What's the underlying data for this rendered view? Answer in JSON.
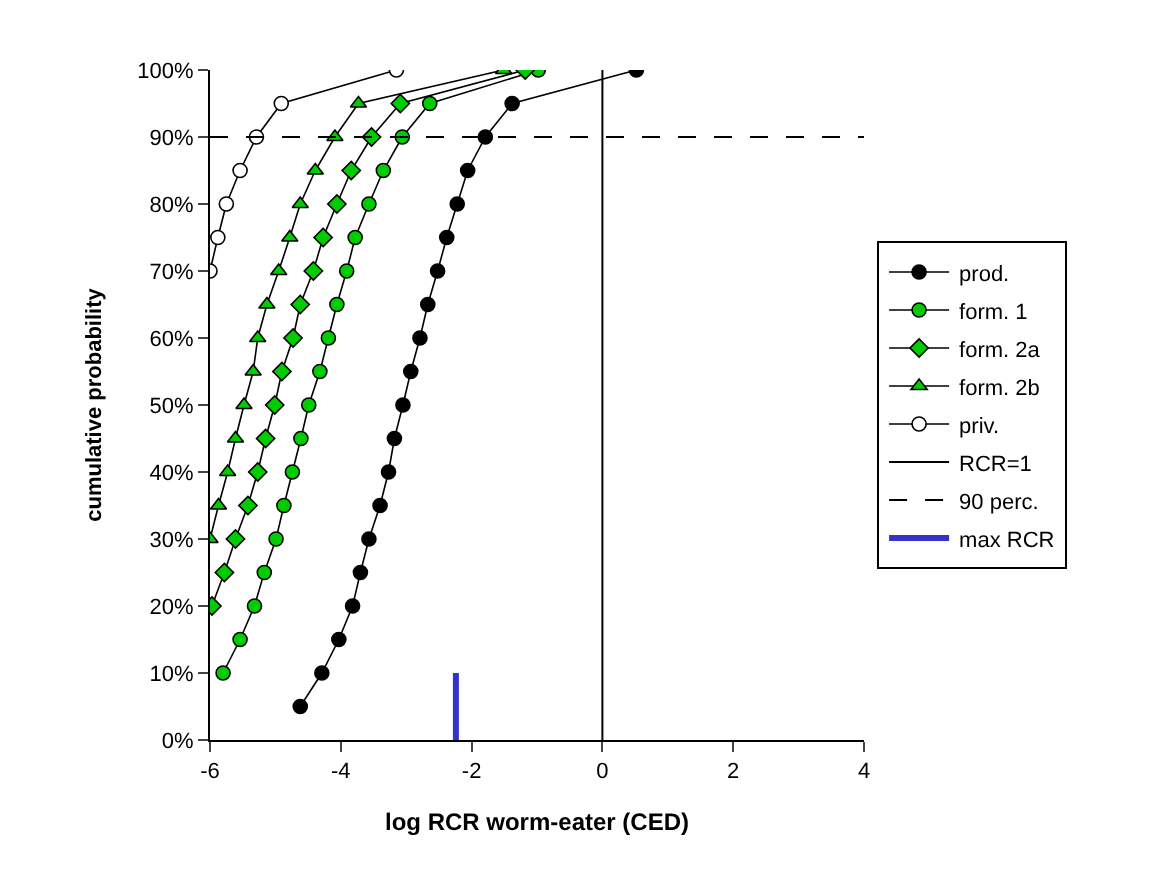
{
  "chart_data": {
    "type": "line",
    "xlabel": "log RCR worm-eater (CED)",
    "ylabel": "cumulative probability",
    "xlim": [
      -6,
      4
    ],
    "xticks": [
      -6,
      -4,
      -2,
      0,
      2,
      4
    ],
    "ylim": [
      0,
      100
    ],
    "yticks": [
      {
        "value": 0,
        "label": "0%"
      },
      {
        "value": 10,
        "label": "10%"
      },
      {
        "value": 20,
        "label": "20%"
      },
      {
        "value": 30,
        "label": "30%"
      },
      {
        "value": 40,
        "label": "40%"
      },
      {
        "value": 50,
        "label": "50%"
      },
      {
        "value": 60,
        "label": "60%"
      },
      {
        "value": 70,
        "label": "70%"
      },
      {
        "value": 80,
        "label": "80%"
      },
      {
        "value": 90,
        "label": "90%"
      },
      {
        "value": 100,
        "label": "100%"
      }
    ],
    "legend": "right",
    "series": [
      {
        "name": "prod.",
        "color": "#000000",
        "marker": "circle",
        "x": [
          -4.62,
          -4.29,
          -4.03,
          -3.82,
          -3.7,
          -3.57,
          -3.4,
          -3.27,
          -3.18,
          -3.05,
          -2.93,
          -2.79,
          -2.67,
          -2.52,
          -2.38,
          -2.22,
          -2.06,
          -1.79,
          -1.38,
          0.52
        ],
        "values": [
          5,
          10,
          15,
          20,
          25,
          30,
          35,
          40,
          45,
          50,
          55,
          60,
          65,
          70,
          75,
          80,
          85,
          90,
          95,
          100
        ]
      },
      {
        "name": "form. 1",
        "color": "#00cc00",
        "marker": "circle",
        "x": [
          -5.8,
          -5.54,
          -5.32,
          -5.17,
          -4.99,
          -4.87,
          -4.74,
          -4.61,
          -4.49,
          -4.32,
          -4.19,
          -4.06,
          -3.91,
          -3.78,
          -3.57,
          -3.35,
          -3.06,
          -2.64,
          -0.98
        ],
        "values": [
          10,
          15,
          20,
          25,
          30,
          35,
          40,
          45,
          50,
          55,
          60,
          65,
          70,
          75,
          80,
          85,
          90,
          95,
          100
        ]
      },
      {
        "name": "form. 2a",
        "color": "#00cc00",
        "marker": "diamond",
        "x": [
          -5.97,
          -5.78,
          -5.61,
          -5.42,
          -5.27,
          -5.15,
          -5.01,
          -4.9,
          -4.73,
          -4.62,
          -4.42,
          -4.27,
          -4.06,
          -3.84,
          -3.53,
          -3.09,
          -1.18
        ],
        "values": [
          20,
          25,
          30,
          35,
          40,
          45,
          50,
          55,
          60,
          65,
          70,
          75,
          80,
          85,
          90,
          95,
          100
        ]
      },
      {
        "name": "form. 2b",
        "color": "#00cc00",
        "marker": "triangle",
        "x": [
          -6.0,
          -5.87,
          -5.73,
          -5.61,
          -5.48,
          -5.34,
          -5.27,
          -5.13,
          -4.95,
          -4.78,
          -4.62,
          -4.39,
          -4.09,
          -3.73,
          -1.51
        ],
        "values": [
          30,
          35,
          40,
          45,
          50,
          55,
          60,
          65,
          70,
          75,
          80,
          85,
          90,
          95,
          100
        ]
      },
      {
        "name": "priv.",
        "color": "#ffffff",
        "marker": "circle",
        "x": [
          -6.0,
          -5.88,
          -5.75,
          -5.54,
          -5.29,
          -4.91,
          -3.15
        ],
        "values": [
          70,
          75,
          80,
          85,
          90,
          95,
          100
        ]
      },
      {
        "name": "RCR=1",
        "color": "#000000",
        "marker": "none",
        "line_style": "solid",
        "x": [
          0,
          0
        ],
        "values": [
          0,
          100
        ]
      },
      {
        "name": "max RCR",
        "color": "#3333cc",
        "marker": "none",
        "x": [
          -2.24,
          -2.24
        ],
        "values": [
          0,
          10
        ]
      }
    ],
    "ref_lines": [
      {
        "axis": "y",
        "value": 90,
        "label": "90 perc.",
        "color": "#000000",
        "line_style": "dashed"
      }
    ]
  }
}
